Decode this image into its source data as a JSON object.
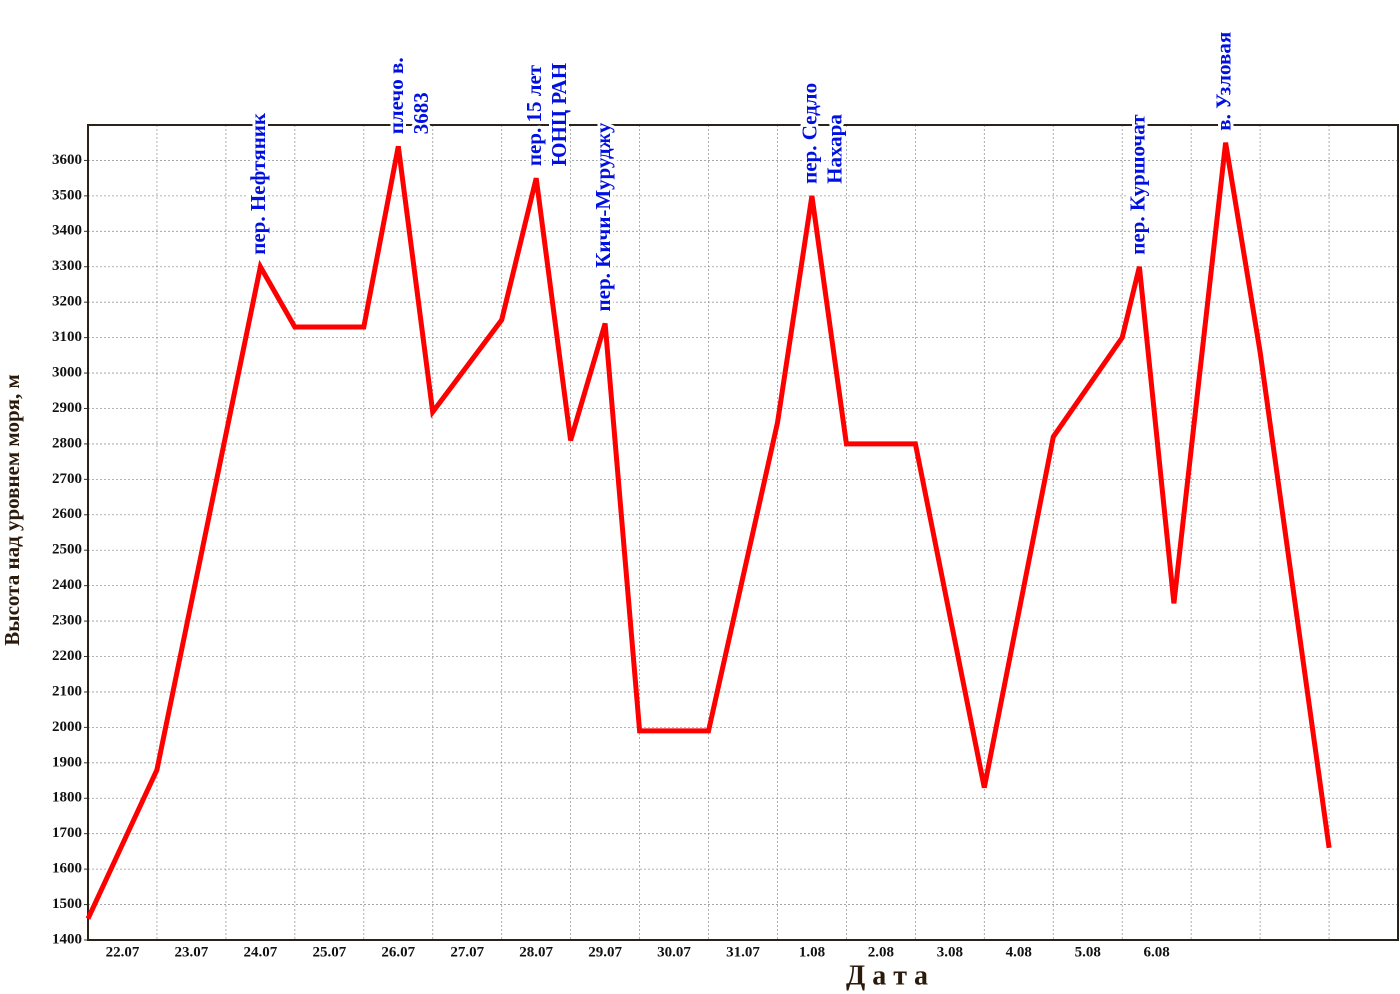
{
  "chart_data": {
    "type": "line",
    "ylabel": "Высота над уровнем моря, м",
    "xlabel": "Д а т а",
    "categories": [
      "22.07",
      "23.07",
      "24.07",
      "25.07",
      "26.07",
      "27.07",
      "28.07",
      "29.07",
      "30.07",
      "31.07",
      "1.08",
      "2.08",
      "3.08",
      "4.08",
      "5.08",
      "6.08",
      null,
      null,
      null
    ],
    "xlim": [
      0,
      19
    ],
    "xticks": [
      0,
      1,
      2,
      3,
      4,
      5,
      6,
      7,
      8,
      9,
      10,
      11,
      12,
      13,
      14,
      15,
      16,
      17,
      18,
      19
    ],
    "ylim": [
      1400,
      3700
    ],
    "yticks": [
      1400,
      1500,
      1600,
      1700,
      1800,
      1900,
      2000,
      2100,
      2200,
      2300,
      2400,
      2500,
      2600,
      2700,
      2800,
      2900,
      3000,
      3100,
      3200,
      3300,
      3400,
      3500,
      3600
    ],
    "grid": true,
    "series": [
      {
        "color": "#ff0000",
        "x": [
          0,
          1,
          2.5,
          3,
          4,
          4.5,
          5,
          6,
          6.5,
          7,
          7.5,
          8,
          9,
          10,
          10.5,
          11,
          12,
          13,
          14,
          15,
          15.25,
          15.75,
          16.5,
          17,
          18
        ],
        "values": [
          1460,
          1880,
          3300,
          3130,
          3130,
          3640,
          2890,
          3150,
          3550,
          2810,
          3140,
          1990,
          1990,
          2860,
          3500,
          2800,
          2800,
          1830,
          2820,
          3100,
          3300,
          2350,
          3650,
          3060,
          1660
        ]
      }
    ],
    "annotations": [
      {
        "x": 2.5,
        "y": 3300,
        "lines": [
          "пер. Нефтяник"
        ]
      },
      {
        "x": 4.5,
        "y": 3640,
        "lines": [
          "плечо в.",
          "3683"
        ]
      },
      {
        "x": 6.5,
        "y": 3550,
        "lines": [
          "пер. 15 лет",
          "ЮНЦ РАН"
        ]
      },
      {
        "x": 7.5,
        "y": 3140,
        "lines": [
          "пер. Кичи-Муруджу"
        ]
      },
      {
        "x": 10.5,
        "y": 3500,
        "lines": [
          "пер. Седло",
          "Нахара"
        ]
      },
      {
        "x": 15.25,
        "y": 3300,
        "lines": [
          "пер. Куршочат"
        ]
      },
      {
        "x": 16.5,
        "y": 3650,
        "lines": [
          "в. Узловая"
        ]
      }
    ]
  }
}
